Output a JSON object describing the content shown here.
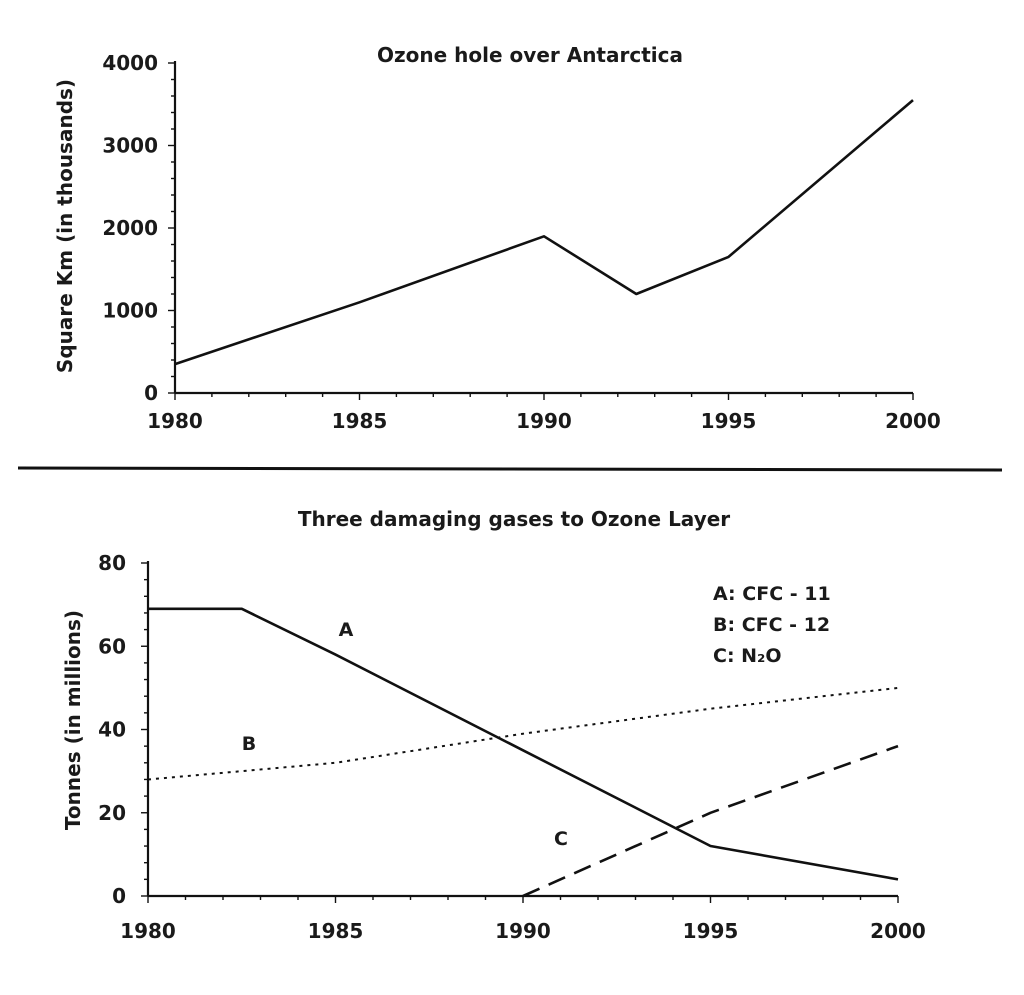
{
  "chart_data": [
    {
      "type": "line",
      "title": "Ozone hole over Antarctica",
      "ylabel": "Square Km (in thousands)",
      "xlabel": "",
      "xlim": [
        1980,
        2000
      ],
      "ylim": [
        0,
        4000
      ],
      "x_ticks": [
        "1980",
        "1985",
        "1990",
        "1995",
        "2000"
      ],
      "y_ticks": [
        "0",
        "1000",
        "2000",
        "3000",
        "4000"
      ],
      "series": [
        {
          "x": [
            1980,
            1985,
            1990,
            1992.5,
            1995,
            2000
          ],
          "y": [
            350,
            1100,
            1900,
            1200,
            1650,
            3550
          ]
        }
      ]
    },
    {
      "type": "line",
      "title": "Three damaging gases to Ozone Layer",
      "ylabel": "Tonnes (in millions)",
      "xlabel": "",
      "xlim": [
        1980,
        2000
      ],
      "ylim": [
        0,
        80
      ],
      "x_ticks": [
        "1980",
        "1985",
        "1990",
        "1995",
        "2000"
      ],
      "y_ticks": [
        "0",
        "20",
        "40",
        "60",
        "80"
      ],
      "legend": [
        "A: CFC - 11",
        "B: CFC - 12",
        "C: N₂O"
      ],
      "series": [
        {
          "name": "A",
          "style": "solid",
          "x": [
            1980,
            1982.5,
            1985,
            1990,
            1995,
            2000
          ],
          "y": [
            69,
            69,
            58,
            35,
            12,
            4
          ]
        },
        {
          "name": "B",
          "style": "dotted",
          "x": [
            1980,
            1985,
            1990,
            1995,
            2000
          ],
          "y": [
            28,
            32,
            39,
            45,
            50
          ]
        },
        {
          "name": "C",
          "style": "dashed",
          "x": [
            1990,
            1995,
            2000
          ],
          "y": [
            0,
            20,
            36
          ]
        }
      ]
    }
  ]
}
